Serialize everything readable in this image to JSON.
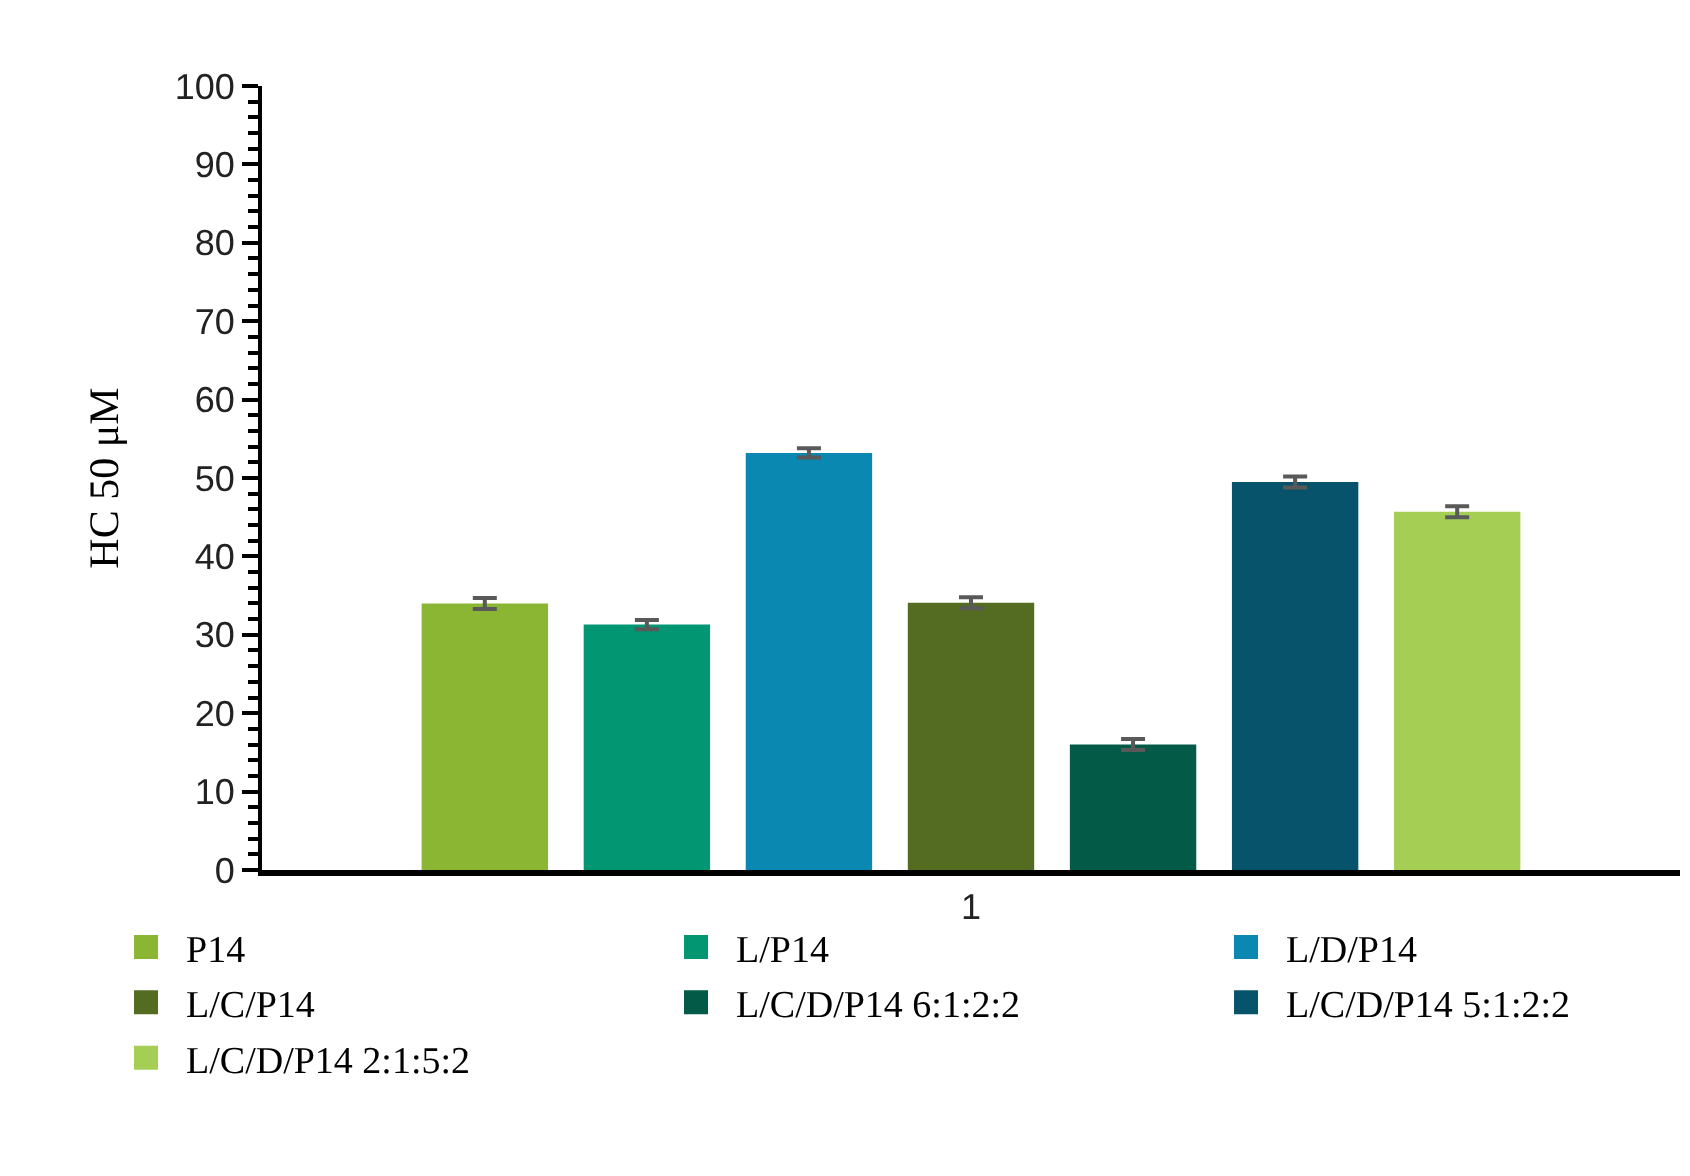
{
  "chart_data": {
    "type": "bar",
    "ylabel": "HC 50 μM",
    "categories": [
      "1"
    ],
    "series": [
      {
        "name": "P14",
        "color": "#8bb634",
        "values": [
          34.0
        ],
        "errors": [
          0.7
        ]
      },
      {
        "name": "L/P14",
        "color": "#039672",
        "values": [
          31.3
        ],
        "errors": [
          0.6
        ]
      },
      {
        "name": "L/D/P14",
        "color": "#0a88b1",
        "values": [
          53.2
        ],
        "errors": [
          0.6
        ]
      },
      {
        "name": "L/C/P14",
        "color": "#536c21",
        "values": [
          34.1
        ],
        "errors": [
          0.7
        ]
      },
      {
        "name": "L/C/D/P14 6:1:2:2",
        "color": "#035a46",
        "values": [
          16.0
        ],
        "errors": [
          0.7
        ]
      },
      {
        "name": "L/C/D/P14 5:1:2:2",
        "color": "#07536b",
        "values": [
          49.5
        ],
        "errors": [
          0.7
        ]
      },
      {
        "name": "L/C/D/P14 2:1:5:2",
        "color": "#a5cf54",
        "values": [
          45.7
        ],
        "errors": [
          0.7
        ]
      }
    ],
    "ylim": [
      0,
      100
    ],
    "yticks": [
      0,
      {
        "value": 2,
        "label": null
      },
      {
        "value": 4,
        "label": null
      },
      {
        "value": 6,
        "label": null
      },
      {
        "value": 8,
        "label": null
      },
      10,
      {
        "value": 12,
        "label": null
      },
      {
        "value": 14,
        "label": null
      },
      {
        "value": 16,
        "label": null
      },
      {
        "value": 18,
        "label": null
      },
      20,
      {
        "value": 22,
        "label": null
      },
      {
        "value": 24,
        "label": null
      },
      {
        "value": 26,
        "label": null
      },
      {
        "value": 28,
        "label": null
      },
      30,
      {
        "value": 32,
        "label": null
      },
      {
        "value": 34,
        "label": null
      },
      {
        "value": 36,
        "label": null
      },
      {
        "value": 38,
        "label": null
      },
      40,
      {
        "value": 42,
        "label": null
      },
      {
        "value": 44,
        "label": null
      },
      {
        "value": 46,
        "label": null
      },
      {
        "value": 48,
        "label": null
      },
      50,
      {
        "value": 52,
        "label": null
      },
      {
        "value": 54,
        "label": null
      },
      {
        "value": 56,
        "label": null
      },
      {
        "value": 58,
        "label": null
      },
      60,
      {
        "value": 62,
        "label": null
      },
      {
        "value": 64,
        "label": null
      },
      {
        "value": 66,
        "label": null
      },
      {
        "value": 68,
        "label": null
      },
      70,
      {
        "value": 72,
        "label": null
      },
      {
        "value": 74,
        "label": null
      },
      {
        "value": 76,
        "label": null
      },
      {
        "value": 78,
        "label": null
      },
      80,
      {
        "value": 82,
        "label": null
      },
      {
        "value": 84,
        "label": null
      },
      {
        "value": 86,
        "label": null
      },
      {
        "value": 88,
        "label": null
      },
      90,
      {
        "value": 92,
        "label": null
      },
      {
        "value": 94,
        "label": null
      },
      {
        "value": 96,
        "label": null
      },
      {
        "value": 98,
        "label": null
      },
      100
    ],
    "grid": false,
    "legend": "bottom"
  }
}
